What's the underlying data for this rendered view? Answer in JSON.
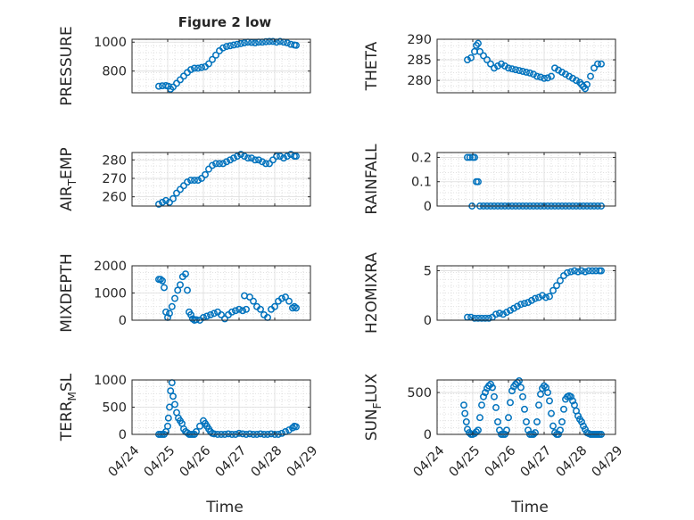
{
  "figure": {
    "title": "Figure 2 low",
    "x_tick_labels": [
      "04/24",
      "04/25",
      "04/26",
      "04/27",
      "04/28",
      "04/29"
    ],
    "xlabel": "Time",
    "marker_color": "#0072BD"
  },
  "chart_data": [
    {
      "type": "scatter",
      "title": "Figure 2 low",
      "ylabel": "PRESSURE",
      "xlim": [
        "04/24",
        "04/29"
      ],
      "ylim": [
        650,
        1020
      ],
      "yticks": [
        800,
        1000
      ],
      "ytick_labels": [
        "800",
        "1000"
      ],
      "grid": true,
      "x": [
        0.75,
        0.85,
        0.95,
        1.02,
        1.08,
        1.15,
        1.25,
        1.35,
        1.45,
        1.55,
        1.65,
        1.75,
        1.85,
        1.95,
        2.05,
        2.15,
        2.25,
        2.35,
        2.45,
        2.55,
        2.65,
        2.75,
        2.85,
        2.95,
        3.05,
        3.15,
        3.25,
        3.35,
        3.45,
        3.55,
        3.65,
        3.75,
        3.85,
        3.95,
        4.05,
        4.15,
        4.25,
        4.35,
        4.45,
        4.55,
        4.6
      ],
      "y": [
        695,
        698,
        700,
        695,
        675,
        690,
        715,
        740,
        765,
        790,
        810,
        820,
        820,
        825,
        830,
        850,
        880,
        910,
        940,
        960,
        970,
        975,
        980,
        985,
        990,
        995,
        1000,
        998,
        995,
        1000,
        1000,
        1003,
        1005,
        1005,
        1000,
        1005,
        1000,
        995,
        985,
        980,
        978
      ]
    },
    {
      "type": "scatter",
      "ylabel": "THETA",
      "xlim": [
        "04/24",
        "04/29"
      ],
      "ylim": [
        277,
        290
      ],
      "yticks": [
        280,
        285,
        290
      ],
      "ytick_labels": [
        "280",
        "285",
        "290"
      ],
      "grid": true,
      "x": [
        0.85,
        0.95,
        1.05,
        1.1,
        1.15,
        1.2,
        1.3,
        1.4,
        1.5,
        1.6,
        1.7,
        1.8,
        1.9,
        2.0,
        2.1,
        2.2,
        2.3,
        2.4,
        2.5,
        2.6,
        2.7,
        2.8,
        2.9,
        3.0,
        3.1,
        3.2,
        3.3,
        3.4,
        3.5,
        3.6,
        3.7,
        3.8,
        3.9,
        4.0,
        4.05,
        4.1,
        4.15,
        4.2,
        4.3,
        4.4,
        4.5,
        4.6
      ],
      "y": [
        285,
        285.5,
        287,
        288.5,
        289,
        287,
        286,
        285,
        284,
        283,
        283.5,
        284,
        283.5,
        283,
        282.8,
        282.6,
        282.4,
        282.2,
        282,
        281.8,
        281.5,
        281,
        280.8,
        280.5,
        280.6,
        281,
        283,
        282.5,
        282,
        281.5,
        281,
        280.5,
        280,
        279.5,
        279,
        278.5,
        278,
        279,
        281,
        283,
        284,
        284
      ]
    },
    {
      "type": "scatter",
      "ylabel": "AIR_TEMP",
      "ylabel_parts": [
        "AIR",
        "T",
        "EMP"
      ],
      "xlim": [
        "04/24",
        "04/29"
      ],
      "ylim": [
        255,
        284
      ],
      "yticks": [
        260,
        270,
        280
      ],
      "ytick_labels": [
        "260",
        "270",
        "280"
      ],
      "grid": true,
      "x": [
        0.75,
        0.85,
        0.95,
        1.05,
        1.15,
        1.25,
        1.35,
        1.45,
        1.55,
        1.65,
        1.75,
        1.85,
        1.95,
        2.05,
        2.15,
        2.25,
        2.35,
        2.45,
        2.55,
        2.65,
        2.75,
        2.85,
        2.95,
        3.05,
        3.15,
        3.25,
        3.35,
        3.45,
        3.55,
        3.65,
        3.75,
        3.85,
        3.95,
        4.05,
        4.15,
        4.25,
        4.35,
        4.45,
        4.55,
        4.6
      ],
      "y": [
        256,
        257,
        258,
        257,
        259,
        262,
        264,
        266,
        268,
        269,
        269,
        269,
        270,
        272,
        275,
        277,
        278,
        278,
        278,
        279,
        280,
        281,
        282,
        283,
        282,
        281,
        281,
        280,
        280,
        279,
        278,
        278,
        280,
        282,
        282,
        281,
        282,
        283,
        282,
        282
      ]
    },
    {
      "type": "scatter",
      "ylabel": "RAINFALL",
      "xlim": [
        "04/24",
        "04/29"
      ],
      "ylim": [
        0,
        0.22
      ],
      "yticks": [
        0,
        0.1,
        0.2
      ],
      "ytick_labels": [
        "0",
        "0.1",
        "0.2"
      ],
      "grid": true,
      "x": [
        0.85,
        0.92,
        0.98,
        1.0,
        1.05,
        1.1,
        1.15,
        1.2,
        1.3,
        1.4,
        1.5,
        1.6,
        1.7,
        1.8,
        1.9,
        2.0,
        2.1,
        2.2,
        2.3,
        2.4,
        2.5,
        2.6,
        2.7,
        2.8,
        2.9,
        3.0,
        3.1,
        3.2,
        3.3,
        3.4,
        3.5,
        3.6,
        3.7,
        3.8,
        3.9,
        4.0,
        4.1,
        4.2,
        4.3,
        4.4,
        4.5,
        4.6
      ],
      "y": [
        0.2,
        0.2,
        0,
        0.2,
        0.2,
        0.1,
        0.1,
        0,
        0,
        0,
        0,
        0,
        0,
        0,
        0,
        0,
        0,
        0,
        0,
        0,
        0,
        0,
        0,
        0,
        0,
        0,
        0,
        0,
        0,
        0,
        0,
        0,
        0,
        0,
        0,
        0,
        0,
        0,
        0,
        0,
        0,
        0
      ]
    },
    {
      "type": "scatter",
      "ylabel": "MIXDEPTH",
      "xlim": [
        "04/24",
        "04/29"
      ],
      "ylim": [
        0,
        2000
      ],
      "yticks": [
        0,
        1000,
        2000
      ],
      "ytick_labels": [
        "0",
        "1000",
        "2000"
      ],
      "grid": true,
      "x": [
        0.75,
        0.8,
        0.85,
        0.9,
        0.95,
        1.0,
        1.05,
        1.12,
        1.2,
        1.28,
        1.35,
        1.42,
        1.5,
        1.55,
        1.6,
        1.65,
        1.7,
        1.75,
        1.8,
        1.9,
        2.0,
        2.1,
        2.2,
        2.3,
        2.4,
        2.5,
        2.6,
        2.7,
        2.8,
        2.9,
        3.0,
        3.1,
        3.15,
        3.2,
        3.3,
        3.4,
        3.5,
        3.6,
        3.7,
        3.8,
        3.9,
        4.0,
        4.1,
        4.2,
        4.3,
        4.4,
        4.5,
        4.55,
        4.6
      ],
      "y": [
        1500,
        1500,
        1450,
        1200,
        300,
        100,
        250,
        500,
        800,
        1100,
        1300,
        1600,
        1700,
        1100,
        300,
        200,
        50,
        0,
        20,
        0,
        100,
        150,
        200,
        250,
        300,
        200,
        50,
        200,
        300,
        350,
        400,
        350,
        900,
        400,
        850,
        700,
        500,
        400,
        200,
        100,
        400,
        500,
        700,
        800,
        850,
        700,
        450,
        500,
        450
      ]
    },
    {
      "type": "scatter",
      "ylabel": "H2OMIXRA",
      "xlim": [
        "04/24",
        "04/29"
      ],
      "ylim": [
        0,
        5.5
      ],
      "yticks": [
        0,
        5
      ],
      "ytick_labels": [
        "0",
        "5"
      ],
      "grid": true,
      "x": [
        0.85,
        0.95,
        1.05,
        1.15,
        1.25,
        1.35,
        1.45,
        1.55,
        1.65,
        1.75,
        1.85,
        1.95,
        2.05,
        2.15,
        2.25,
        2.35,
        2.45,
        2.55,
        2.65,
        2.75,
        2.85,
        2.95,
        3.05,
        3.15,
        3.25,
        3.35,
        3.45,
        3.55,
        3.65,
        3.75,
        3.85,
        3.95,
        4.05,
        4.15,
        4.25,
        4.35,
        4.45,
        4.55,
        4.6
      ],
      "y": [
        0.3,
        0.3,
        0.2,
        0.2,
        0.2,
        0.2,
        0.2,
        0.3,
        0.6,
        0.7,
        0.6,
        0.8,
        1.0,
        1.2,
        1.4,
        1.6,
        1.7,
        1.8,
        2.0,
        2.2,
        2.3,
        2.5,
        2.3,
        2.4,
        3.0,
        3.5,
        4.0,
        4.5,
        4.8,
        4.9,
        5.0,
        4.9,
        5.0,
        4.9,
        5.0,
        5.0,
        5.0,
        5.0,
        5.0
      ]
    },
    {
      "type": "scatter",
      "ylabel": "TERR_MSL",
      "ylabel_parts": [
        "TERR",
        "M",
        "SL"
      ],
      "xlim": [
        "04/24",
        "04/29"
      ],
      "ylim": [
        0,
        1000
      ],
      "yticks": [
        0,
        500,
        1000
      ],
      "ytick_labels": [
        "0",
        "500",
        "1000"
      ],
      "grid": true,
      "x": [
        0.75,
        0.8,
        0.85,
        0.9,
        0.95,
        1.0,
        1.02,
        1.05,
        1.08,
        1.12,
        1.15,
        1.2,
        1.25,
        1.3,
        1.35,
        1.4,
        1.45,
        1.5,
        1.55,
        1.6,
        1.65,
        1.7,
        1.75,
        1.8,
        1.9,
        2.0,
        2.05,
        2.1,
        2.15,
        2.2,
        2.25,
        2.3,
        2.4,
        2.5,
        2.6,
        2.7,
        2.8,
        2.9,
        3.0,
        3.1,
        3.2,
        3.3,
        3.4,
        3.5,
        3.6,
        3.7,
        3.8,
        3.9,
        4.0,
        4.1,
        4.2,
        4.3,
        4.4,
        4.5,
        4.55,
        4.6
      ],
      "y": [
        0,
        0,
        0,
        0,
        50,
        150,
        300,
        500,
        800,
        950,
        700,
        550,
        400,
        300,
        250,
        200,
        100,
        50,
        30,
        0,
        0,
        0,
        0,
        50,
        150,
        250,
        200,
        150,
        100,
        50,
        20,
        10,
        0,
        0,
        0,
        10,
        0,
        0,
        20,
        10,
        0,
        10,
        0,
        0,
        10,
        0,
        0,
        10,
        0,
        0,
        20,
        50,
        80,
        120,
        150,
        140
      ]
    },
    {
      "type": "scatter",
      "ylabel": "SUN_FLUX",
      "ylabel_parts": [
        "SUN",
        "F",
        "LUX"
      ],
      "xlim": [
        "04/24",
        "04/29"
      ],
      "ylim": [
        0,
        650
      ],
      "yticks": [
        0,
        500
      ],
      "ytick_labels": [
        "0",
        "500"
      ],
      "grid": true,
      "x": [
        0.75,
        0.78,
        0.82,
        0.85,
        0.9,
        0.95,
        1.0,
        1.05,
        1.1,
        1.15,
        1.2,
        1.25,
        1.3,
        1.35,
        1.4,
        1.45,
        1.5,
        1.55,
        1.6,
        1.65,
        1.7,
        1.75,
        1.8,
        1.85,
        1.9,
        1.95,
        2.0,
        2.05,
        2.1,
        2.15,
        2.2,
        2.25,
        2.3,
        2.35,
        2.4,
        2.45,
        2.5,
        2.55,
        2.6,
        2.65,
        2.7,
        2.75,
        2.8,
        2.85,
        2.9,
        2.95,
        3.0,
        3.05,
        3.1,
        3.15,
        3.2,
        3.25,
        3.3,
        3.35,
        3.4,
        3.45,
        3.5,
        3.55,
        3.6,
        3.65,
        3.7,
        3.75,
        3.8,
        3.85,
        3.9,
        3.95,
        4.0,
        4.05,
        4.1,
        4.15,
        4.2,
        4.25,
        4.3,
        4.35,
        4.4,
        4.45,
        4.5,
        4.55,
        4.6
      ],
      "y": [
        350,
        250,
        150,
        60,
        20,
        0,
        0,
        10,
        30,
        50,
        200,
        350,
        450,
        500,
        550,
        580,
        600,
        560,
        450,
        320,
        150,
        50,
        0,
        0,
        0,
        50,
        200,
        380,
        520,
        570,
        600,
        620,
        640,
        560,
        450,
        300,
        150,
        50,
        0,
        0,
        0,
        20,
        150,
        350,
        480,
        550,
        580,
        560,
        500,
        400,
        250,
        100,
        20,
        0,
        0,
        50,
        150,
        300,
        420,
        450,
        460,
        450,
        400,
        350,
        280,
        220,
        180,
        150,
        100,
        60,
        20,
        10,
        0,
        0,
        0,
        0,
        0,
        0,
        0
      ]
    }
  ]
}
